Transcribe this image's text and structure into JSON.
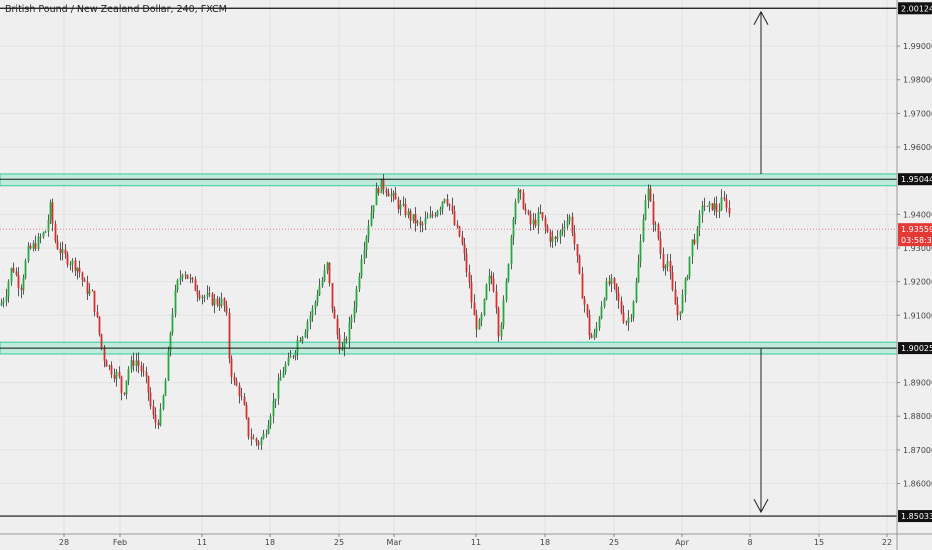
{
  "chart_data": {
    "type": "candlestick",
    "title": "British Pound / New Zealand Dollar, 240, FXCM",
    "ylim": [
      1.845,
      2.0037
    ],
    "price_ticks": [
      "1.86000",
      "1.87000",
      "1.88000",
      "1.89000",
      "1.91000",
      "1.92000",
      "1.93000",
      "1.94000",
      "1.96000",
      "1.97000",
      "1.98000",
      "1.99000"
    ],
    "date_ticks": [
      "28",
      "Feb",
      "11",
      "18",
      "25",
      "Mar",
      "11",
      "18",
      "25",
      "Apr",
      "8",
      "15",
      "22"
    ],
    "horizontal_levels": [
      {
        "name": "target-top",
        "value": 2.00124,
        "label": "2.00124",
        "style": "line"
      },
      {
        "name": "resistance",
        "value": 1.95044,
        "label": "1.95044",
        "style": "zone",
        "zone": [
          1.9485,
          1.952
        ]
      },
      {
        "name": "support",
        "value": 1.90025,
        "label": "1.90025",
        "style": "zone",
        "zone": [
          1.8985,
          1.902
        ]
      },
      {
        "name": "target-bottom",
        "value": 1.85033,
        "label": "1.85033",
        "style": "line"
      }
    ],
    "current_price": {
      "value": 1.93559,
      "label": "1.93559",
      "countdown": "03:58:35"
    },
    "arrows": [
      {
        "direction": "up",
        "from": 1.952,
        "to": 2.0002
      },
      {
        "direction": "down",
        "from": 1.9003,
        "to": 1.8515
      }
    ],
    "path_points": [
      [
        0,
        1.913
      ],
      [
        5,
        1.916
      ],
      [
        12,
        1.925
      ],
      [
        20,
        1.918
      ],
      [
        28,
        1.929
      ],
      [
        38,
        1.932
      ],
      [
        45,
        1.935
      ],
      [
        50,
        1.942
      ],
      [
        55,
        1.932
      ],
      [
        62,
        1.928
      ],
      [
        70,
        1.926
      ],
      [
        78,
        1.924
      ],
      [
        85,
        1.918
      ],
      [
        92,
        1.916
      ],
      [
        98,
        1.906
      ],
      [
        103,
        1.898
      ],
      [
        108,
        1.895
      ],
      [
        113,
        1.893
      ],
      [
        118,
        1.892
      ],
      [
        122,
        1.886
      ],
      [
        128,
        1.894
      ],
      [
        135,
        1.897
      ],
      [
        142,
        1.893
      ],
      [
        147,
        1.889
      ],
      [
        152,
        1.88
      ],
      [
        156,
        1.878
      ],
      [
        160,
        1.88
      ],
      [
        165,
        1.89
      ],
      [
        170,
        1.905
      ],
      [
        174,
        1.915
      ],
      [
        178,
        1.92
      ],
      [
        183,
        1.924
      ],
      [
        188,
        1.921
      ],
      [
        195,
        1.918
      ],
      [
        202,
        1.916
      ],
      [
        208,
        1.915
      ],
      [
        215,
        1.914
      ],
      [
        222,
        1.914
      ],
      [
        226,
        1.911
      ],
      [
        229,
        1.897
      ],
      [
        233,
        1.89
      ],
      [
        238,
        1.888
      ],
      [
        243,
        1.883
      ],
      [
        248,
        1.875
      ],
      [
        253,
        1.873
      ],
      [
        258,
        1.872
      ],
      [
        263,
        1.874
      ],
      [
        268,
        1.879
      ],
      [
        273,
        1.884
      ],
      [
        278,
        1.889
      ],
      [
        283,
        1.894
      ],
      [
        288,
        1.896
      ],
      [
        293,
        1.899
      ],
      [
        298,
        1.903
      ],
      [
        303,
        1.905
      ],
      [
        308,
        1.909
      ],
      [
        313,
        1.912
      ],
      [
        318,
        1.918
      ],
      [
        323,
        1.921
      ],
      [
        327,
        1.925
      ],
      [
        331,
        1.914
      ],
      [
        336,
        1.905
      ],
      [
        341,
        1.899
      ],
      [
        346,
        1.903
      ],
      [
        351,
        1.909
      ],
      [
        356,
        1.917
      ],
      [
        361,
        1.928
      ],
      [
        366,
        1.934
      ],
      [
        371,
        1.941
      ],
      [
        375,
        1.946
      ],
      [
        380,
        1.949
      ],
      [
        385,
        1.948
      ],
      [
        390,
        1.946
      ],
      [
        395,
        1.944
      ],
      [
        400,
        1.942
      ],
      [
        405,
        1.941
      ],
      [
        410,
        1.939
      ],
      [
        415,
        1.938
      ],
      [
        420,
        1.936
      ],
      [
        425,
        1.938
      ],
      [
        430,
        1.939
      ],
      [
        435,
        1.941
      ],
      [
        440,
        1.943
      ],
      [
        445,
        1.946
      ],
      [
        450,
        1.942
      ],
      [
        455,
        1.936
      ],
      [
        460,
        1.933
      ],
      [
        465,
        1.926
      ],
      [
        470,
        1.917
      ],
      [
        474,
        1.909
      ],
      [
        478,
        1.906
      ],
      [
        482,
        1.91
      ],
      [
        486,
        1.918
      ],
      [
        490,
        1.922
      ],
      [
        495,
        1.917
      ],
      [
        498,
        1.905
      ],
      [
        502,
        1.91
      ],
      [
        506,
        1.92
      ],
      [
        510,
        1.932
      ],
      [
        514,
        1.943
      ],
      [
        518,
        1.946
      ],
      [
        522,
        1.944
      ],
      [
        526,
        1.94
      ],
      [
        530,
        1.937
      ],
      [
        535,
        1.938
      ],
      [
        540,
        1.94
      ],
      [
        545,
        1.936
      ],
      [
        550,
        1.933
      ],
      [
        555,
        1.932
      ],
      [
        560,
        1.935
      ],
      [
        565,
        1.938
      ],
      [
        570,
        1.939
      ],
      [
        575,
        1.93
      ],
      [
        580,
        1.919
      ],
      [
        585,
        1.912
      ],
      [
        590,
        1.903
      ],
      [
        595,
        1.904
      ],
      [
        600,
        1.912
      ],
      [
        605,
        1.918
      ],
      [
        610,
        1.92
      ],
      [
        615,
        1.917
      ],
      [
        620,
        1.912
      ],
      [
        625,
        1.908
      ],
      [
        630,
        1.91
      ],
      [
        635,
        1.918
      ],
      [
        640,
        1.93
      ],
      [
        644,
        1.944
      ],
      [
        648,
        1.947
      ],
      [
        652,
        1.939
      ],
      [
        657,
        1.934
      ],
      [
        662,
        1.925
      ],
      [
        667,
        1.927
      ],
      [
        672,
        1.917
      ],
      [
        677,
        1.91
      ],
      [
        682,
        1.915
      ],
      [
        687,
        1.923
      ],
      [
        692,
        1.932
      ],
      [
        697,
        1.934
      ],
      [
        702,
        1.944
      ],
      [
        707,
        1.941
      ],
      [
        712,
        1.943
      ],
      [
        717,
        1.941
      ],
      [
        722,
        1.944
      ],
      [
        727,
        1.943
      ],
      [
        731,
        1.936
      ]
    ]
  }
}
